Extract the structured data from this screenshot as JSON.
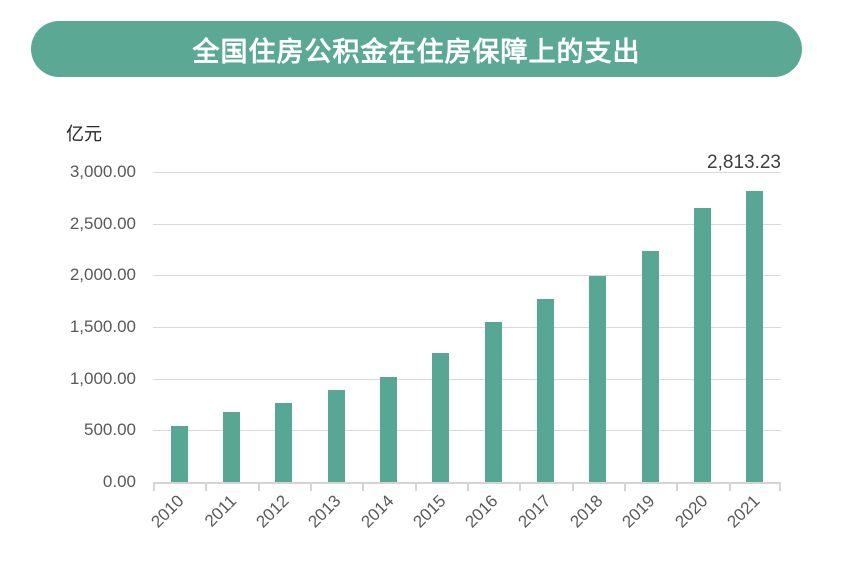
{
  "banner": {
    "title": "全国住房公积金在住房保障上的支出",
    "bg_color": "#5ba894",
    "text_color": "#ffffff"
  },
  "chart_data": {
    "type": "bar",
    "title": "全国住房公积金在住房保障上的支出",
    "unit_label": "亿元",
    "categories": [
      "2010",
      "2011",
      "2012",
      "2013",
      "2014",
      "2015",
      "2016",
      "2017",
      "2018",
      "2019",
      "2020",
      "2021"
    ],
    "values": [
      540,
      675,
      765,
      890,
      1015,
      1250,
      1550,
      1770,
      1990,
      2240,
      2650,
      2813.23
    ],
    "bar_color": "#57a794",
    "ylim": [
      0,
      3000
    ],
    "ytick_step": 500,
    "ytick_labels": [
      "0.00",
      "500.00",
      "1,000.00",
      "1,500.00",
      "2,000.00",
      "2,500.00",
      "3,000.00"
    ],
    "grid": true,
    "gridline_color": "#d9d9d9",
    "label_color": "#595959",
    "x_label_rotation": 45,
    "legend": "none",
    "data_label": {
      "only_last_point": true,
      "text": "2,813.23",
      "color": "#404040"
    }
  }
}
